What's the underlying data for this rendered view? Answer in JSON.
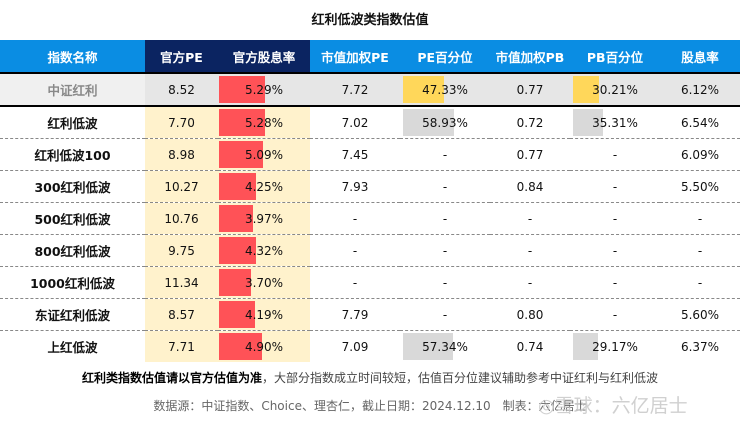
{
  "title": "红利低波类指数估值",
  "headers": [
    "指数名称",
    "官方PE",
    "官方股息率",
    "市值加权PE",
    "PE百分位",
    "市值加权PB",
    "PB百分位",
    "股息率"
  ],
  "colors": {
    "header": "#0a8de3",
    "header_dark": "#0b2461",
    "yield_bar": "#ff5257",
    "ref_pct_bar": "#ffd75a",
    "pct_bar": "#d9d9d9",
    "cream": "#fff2cc"
  },
  "rows": [
    {
      "name": "中证红利",
      "pe": "8.52",
      "dy": "5.29%",
      "dy_v": 5.29,
      "wpe": "7.72",
      "pe_pct": "47.33%",
      "pe_pct_v": 47.33,
      "wpb": "0.77",
      "pb_pct": "30.21%",
      "pb_pct_v": 30.21,
      "yield": "6.12%"
    },
    {
      "name": "红利低波",
      "pe": "7.70",
      "dy": "5.28%",
      "dy_v": 5.28,
      "wpe": "7.02",
      "pe_pct": "58.93%",
      "pe_pct_v": 58.93,
      "wpb": "0.72",
      "pb_pct": "35.31%",
      "pb_pct_v": 35.31,
      "yield": "6.54%"
    },
    {
      "name": "红利低波100",
      "pe": "8.98",
      "dy": "5.09%",
      "dy_v": 5.09,
      "wpe": "7.45",
      "pe_pct": "-",
      "wpb": "0.77",
      "pb_pct": "-",
      "yield": "6.09%"
    },
    {
      "name": "300红利低波",
      "pe": "10.27",
      "dy": "4.25%",
      "dy_v": 4.25,
      "wpe": "7.93",
      "pe_pct": "-",
      "wpb": "0.84",
      "pb_pct": "-",
      "yield": "5.50%"
    },
    {
      "name": "500红利低波",
      "pe": "10.76",
      "dy": "3.97%",
      "dy_v": 3.97,
      "wpe": "-",
      "pe_pct": "-",
      "wpb": "-",
      "pb_pct": "-",
      "yield": "-"
    },
    {
      "name": "800红利低波",
      "pe": "9.75",
      "dy": "4.32%",
      "dy_v": 4.32,
      "wpe": "-",
      "pe_pct": "-",
      "wpb": "-",
      "pb_pct": "-",
      "yield": "-"
    },
    {
      "name": "1000红利低波",
      "pe": "11.34",
      "dy": "3.70%",
      "dy_v": 3.7,
      "wpe": "-",
      "pe_pct": "-",
      "wpb": "-",
      "pb_pct": "-",
      "yield": "-"
    },
    {
      "name": "东证红利低波",
      "pe": "8.57",
      "dy": "4.19%",
      "dy_v": 4.19,
      "wpe": "7.79",
      "pe_pct": "-",
      "wpb": "0.80",
      "pb_pct": "-",
      "yield": "5.60%"
    },
    {
      "name": "上红低波",
      "pe": "7.71",
      "dy": "4.90%",
      "dy_v": 4.9,
      "wpe": "7.09",
      "pe_pct": "57.34%",
      "pe_pct_v": 57.34,
      "wpb": "0.74",
      "pb_pct": "29.17%",
      "pb_pct_v": 29.17,
      "yield": "6.37%"
    }
  ],
  "note": {
    "bold": "红利类指数估值请以官方估值为准",
    "rest": "，大部分指数成立时间较短，估值百分位建议辅助参考中证红利与红利低波"
  },
  "source": "数据源：中证指数、Choice、理杏仁，截止日期：2024.12.10　制表：六亿居士",
  "watermark": "◎雪球：六亿居士"
}
